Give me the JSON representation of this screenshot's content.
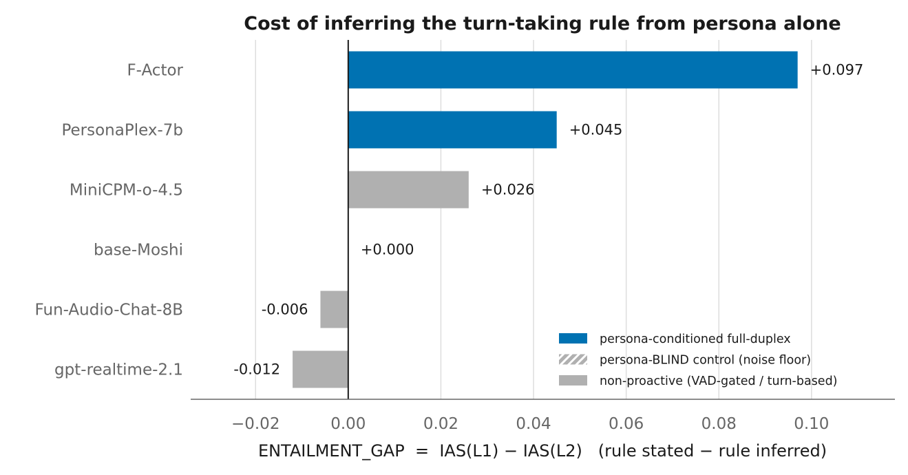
{
  "chart_data": {
    "type": "bar",
    "orientation": "horizontal",
    "title": "Cost of inferring the turn-taking rule from persona alone",
    "xlabel": "ENTAILMENT_GAP  =  IAS(L1) − IAS(L2)   (rule stated − rule inferred)",
    "ylabel": "",
    "xlim": [
      -0.034,
      0.118
    ],
    "xticks": [
      {
        "value": -0.02,
        "label": "−0.02"
      },
      {
        "value": 0.0,
        "label": "0.00"
      },
      {
        "value": 0.02,
        "label": "0.02"
      },
      {
        "value": 0.04,
        "label": "0.04"
      },
      {
        "value": 0.06,
        "label": "0.06"
      },
      {
        "value": 0.08,
        "label": "0.08"
      },
      {
        "value": 0.1,
        "label": "0.10"
      }
    ],
    "grid": "x",
    "categories": [
      "F-Actor",
      "PersonaPlex-7b",
      "MiniCPM-o-4.5",
      "base-Moshi",
      "Fun-Audio-Chat-8B",
      "gpt-realtime-2.1"
    ],
    "values": [
      0.097,
      0.045,
      0.026,
      0.0,
      -0.006,
      -0.012
    ],
    "value_labels": [
      "+0.097",
      "+0.045",
      "+0.026",
      "+0.000",
      "-0.006",
      "-0.012"
    ],
    "groups": [
      "persona-conditioned",
      "persona-conditioned",
      "non-proactive",
      "non-proactive",
      "non-proactive",
      "non-proactive"
    ],
    "colors": {
      "persona-conditioned": "#0072b2",
      "non-proactive": "#b0b0b0",
      "axis": "#1a1a1a"
    },
    "legend": {
      "placement": "lower-right",
      "entries": [
        {
          "group": "persona-conditioned",
          "label": "persona-conditioned full-duplex",
          "style": "solid",
          "color": "#0072b2"
        },
        {
          "group": "persona-blind",
          "label": "persona-BLIND control (noise floor)",
          "style": "hatched",
          "color": "#b0b0b0"
        },
        {
          "group": "non-proactive",
          "label": "non-proactive (VAD-gated / turn-based)",
          "style": "solid",
          "color": "#b0b0b0"
        }
      ]
    }
  }
}
